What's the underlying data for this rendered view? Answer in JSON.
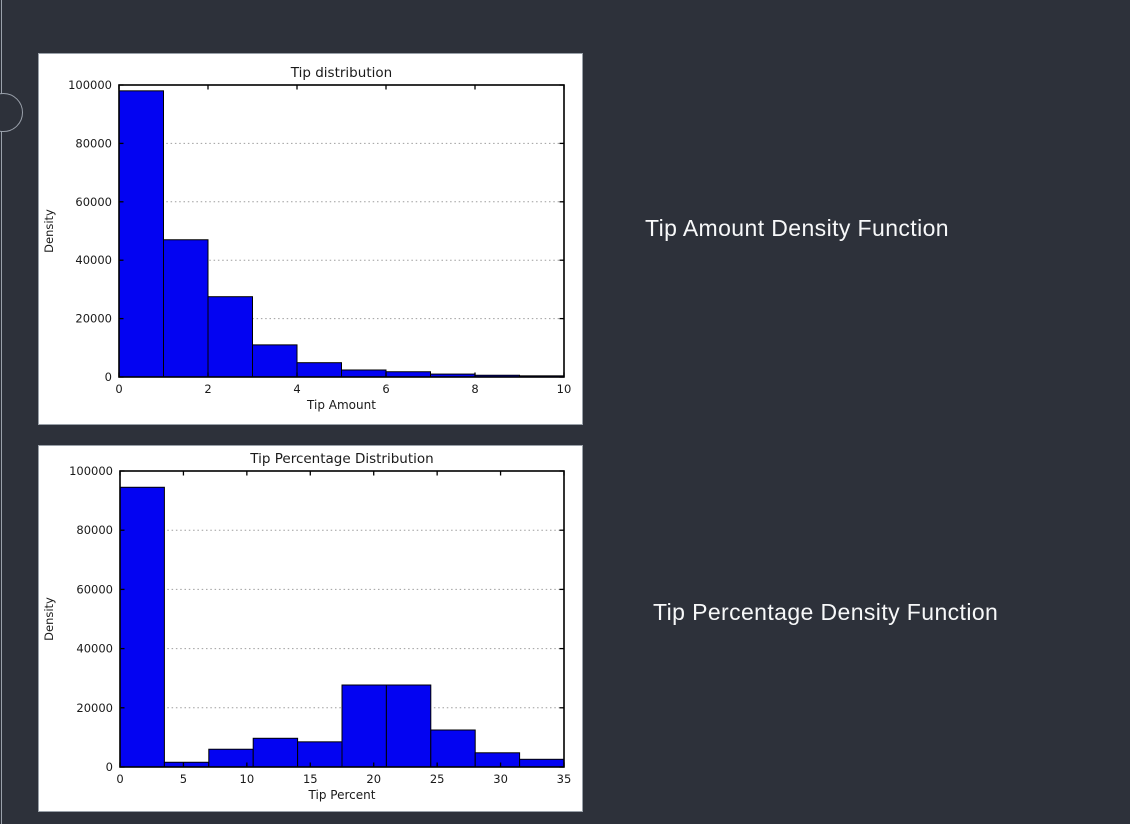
{
  "captions": {
    "tip_amount": "Tip Amount Density Function",
    "tip_percentage": "Tip Percentage Density Function"
  },
  "colors": {
    "background": "#2d313a",
    "divider": "#9aa1ab",
    "panel": "#ffffff",
    "panel_border": "#99a0a8",
    "caption_text": "#f7f8f9",
    "bar_fill": "#0303f2",
    "bar_edge": "#000000",
    "axis": "#000000",
    "grid": "#9e9e9e",
    "tick_text": "#1a1a1a"
  },
  "chart_data": [
    {
      "type": "bar",
      "title": "Tip distribution",
      "xlabel": "Tip Amount",
      "ylabel": "Density",
      "xlim": [
        0,
        10
      ],
      "ylim": [
        0,
        100000
      ],
      "xticks": [
        0,
        2,
        4,
        6,
        8,
        10
      ],
      "yticks": [
        0,
        20000,
        40000,
        60000,
        80000,
        100000
      ],
      "grid": "horizontal-dotted",
      "bin_edges": [
        0,
        1,
        2,
        3,
        4,
        5,
        6,
        7,
        8,
        9,
        10
      ],
      "values": [
        98000,
        47000,
        27500,
        11000,
        4900,
        2400,
        1800,
        1000,
        600,
        400
      ]
    },
    {
      "type": "bar",
      "title": "Tip Percentage Distribution",
      "xlabel": "Tip Percent",
      "ylabel": "Density",
      "xlim": [
        0,
        35
      ],
      "ylim": [
        0,
        100000
      ],
      "xticks": [
        0,
        5,
        10,
        15,
        20,
        25,
        30,
        35
      ],
      "yticks": [
        0,
        20000,
        40000,
        60000,
        80000,
        100000
      ],
      "grid": "horizontal-dotted",
      "bin_edges": [
        0,
        3.5,
        7,
        10.5,
        14,
        17.5,
        21,
        24.5,
        28,
        31.5,
        35
      ],
      "values": [
        94500,
        1600,
        6000,
        9700,
        8500,
        27700,
        27700,
        12500,
        4800,
        2600
      ]
    }
  ]
}
